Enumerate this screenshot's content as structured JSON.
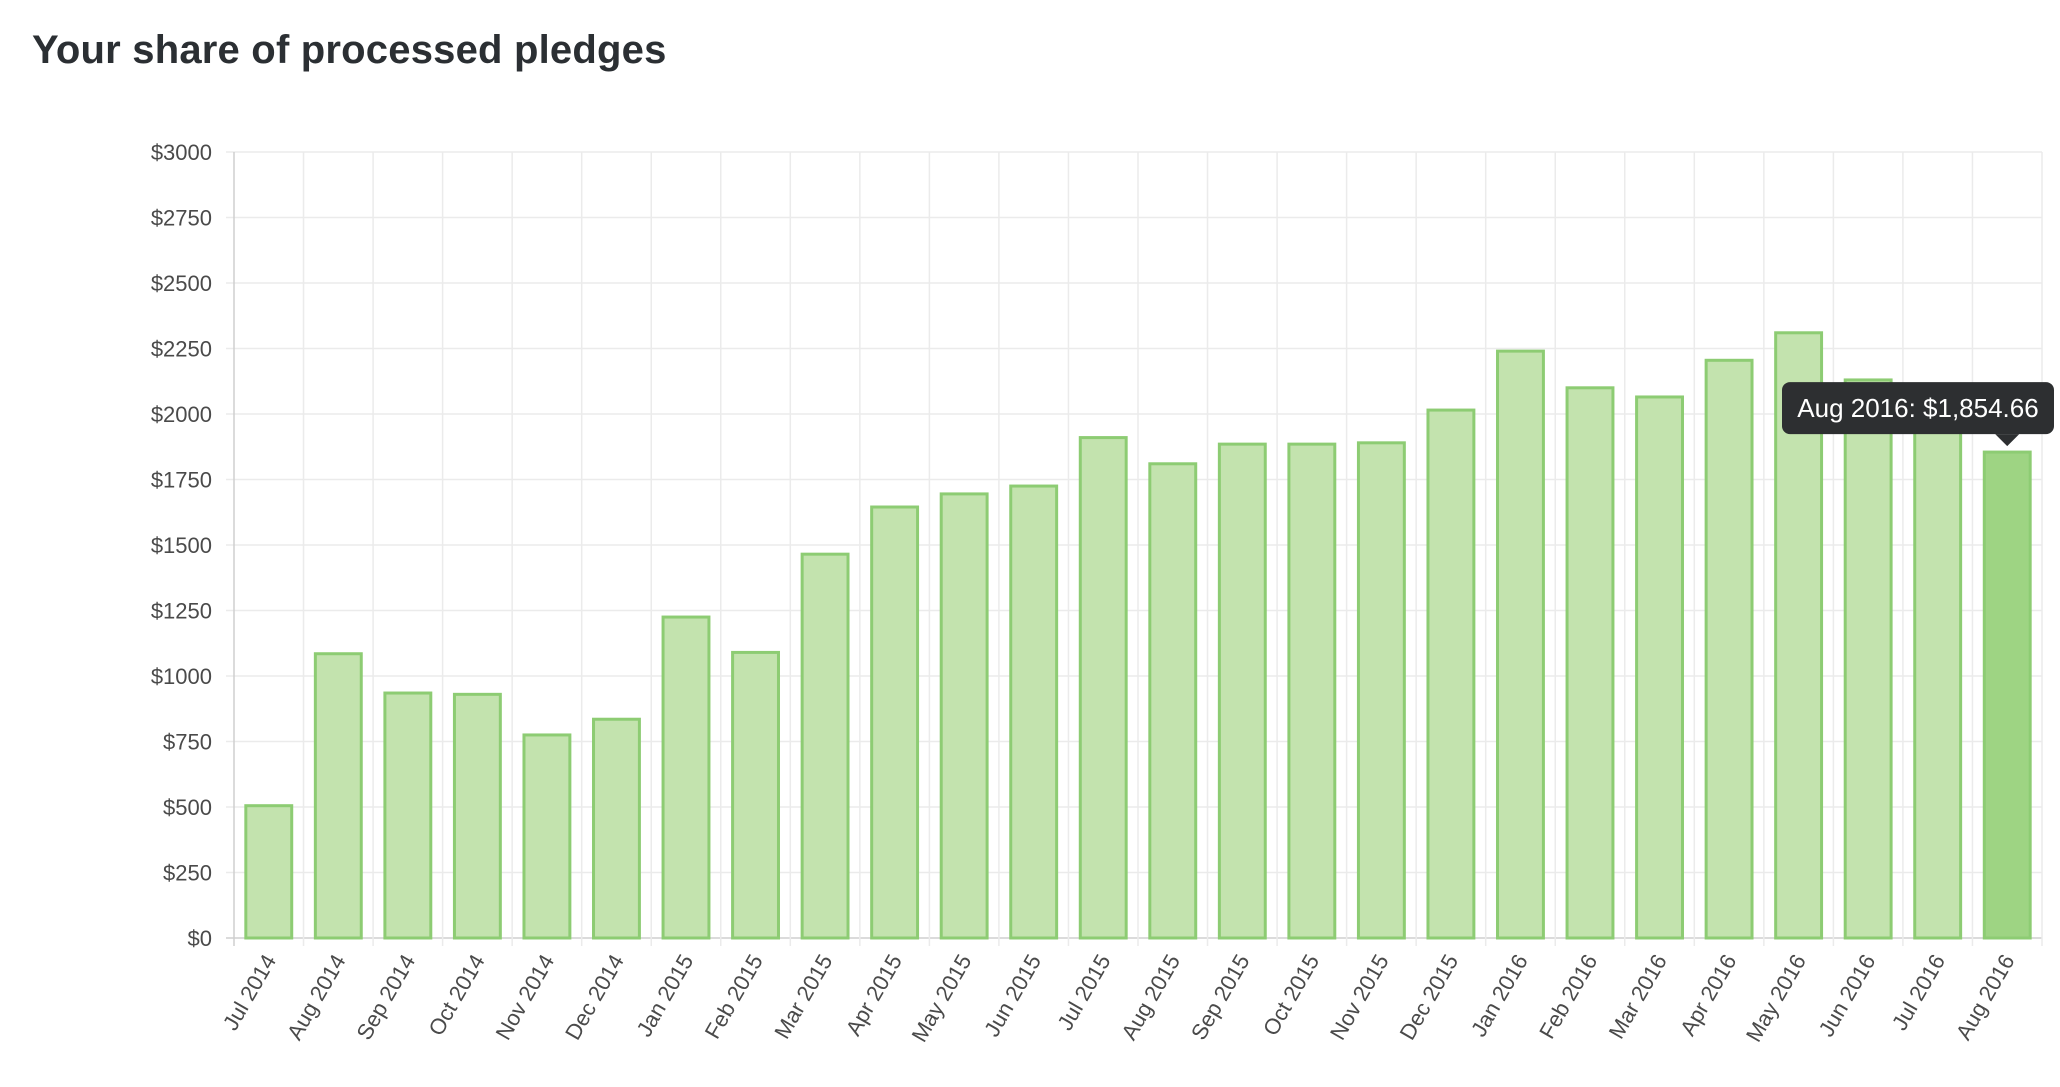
{
  "page": {
    "title": "Your share of processed pledges"
  },
  "chart_data": {
    "type": "bar",
    "title": "",
    "xlabel": "",
    "ylabel": "",
    "ylim": [
      0,
      3000
    ],
    "ytick_step": 250,
    "ytick_prefix": "$",
    "grid": true,
    "categories": [
      "Jul 2014",
      "Aug 2014",
      "Sep 2014",
      "Oct 2014",
      "Nov 2014",
      "Dec 2014",
      "Jan 2015",
      "Feb 2015",
      "Mar 2015",
      "Apr 2015",
      "May 2015",
      "Jun 2015",
      "Jul 2015",
      "Aug 2015",
      "Sep 2015",
      "Oct 2015",
      "Nov 2015",
      "Dec 2015",
      "Jan 2016",
      "Feb 2016",
      "Mar 2016",
      "Apr 2016",
      "May 2016",
      "Jun 2016",
      "Jul 2016",
      "Aug 2016"
    ],
    "values": [
      505,
      1085,
      935,
      930,
      775,
      835,
      1225,
      1090,
      1465,
      1645,
      1695,
      1725,
      1910,
      1810,
      1885,
      1885,
      1890,
      2015,
      2240,
      2100,
      2065,
      2205,
      2310,
      2130,
      2030,
      1854.66
    ],
    "colors": {
      "bar_fill": "#c3e3ae",
      "bar_stroke": "#8dcc73",
      "bar_active_fill": "#9ed483",
      "grid": "#ebebeb",
      "axis": "#cfcfcf",
      "tick_text": "#4a4a4a",
      "tooltip_bg": "#2d2f31",
      "tooltip_text": "#ffffff"
    },
    "tooltip": {
      "category_index": 25,
      "text": "Aug 2016: $1,854.66"
    }
  }
}
